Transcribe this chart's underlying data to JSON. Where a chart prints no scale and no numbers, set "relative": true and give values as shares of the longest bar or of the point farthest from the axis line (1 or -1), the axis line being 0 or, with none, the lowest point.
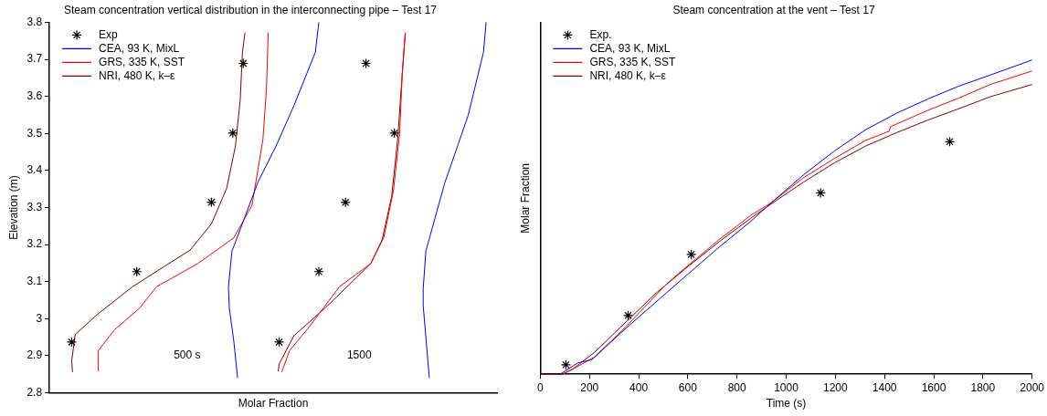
{
  "chart_data": [
    {
      "type": "line",
      "title": "Steam concentration vertical distribution in the interconnecting pipe – Test 17",
      "xlabel": "Molar Fraction",
      "ylabel": "Elevation (m)",
      "orientation": "horizontal",
      "relative": true,
      "ylim": [
        2.8,
        3.8
      ],
      "yticks": [
        2.8,
        2.9,
        3,
        3.1,
        3.2,
        3.3,
        3.4,
        3.5,
        3.6,
        3.7,
        3.8
      ],
      "tick_labels": "y",
      "grid": false,
      "legend": "top left",
      "annotations": [
        "500 s",
        "1500"
      ],
      "series": [
        {
          "name": "Exp",
          "type": "scatter",
          "marker": "cross",
          "color": "#000000",
          "x": [
            2.937,
            3.127,
            3.314,
            3.501,
            3.689
          ],
          "values": [
            0.051,
            0.2,
            0.371,
            0.42,
            0.444
          ]
        },
        {
          "name": "CEA, 93 K, MixL",
          "color": "#0000ff",
          "x": [
            2.84,
            2.942,
            3.028,
            3.086,
            3.182,
            3.263,
            3.37,
            3.466,
            3.575,
            3.719,
            3.8
          ],
          "values": [
            0.431,
            0.422,
            0.412,
            0.41,
            0.418,
            0.444,
            0.478,
            0.519,
            0.56,
            0.609,
            0.617
          ]
        },
        {
          "name": "GRS, 335 K, SST",
          "color": "#ff0000",
          "x": [
            2.858,
            2.914,
            2.97,
            3.028,
            3.086,
            3.149,
            3.218,
            3.306,
            3.484,
            3.618,
            3.772
          ],
          "values": [
            0.112,
            0.112,
            0.149,
            0.206,
            0.245,
            0.34,
            0.422,
            0.464,
            0.489,
            0.497,
            0.501
          ]
        },
        {
          "name": "NRI, 480 K, k–ε",
          "color": "#800000",
          "x": [
            2.856,
            2.886,
            2.957,
            3.01,
            3.086,
            3.132,
            3.185,
            3.256,
            3.352,
            3.466,
            3.592,
            3.719,
            3.772
          ],
          "values": [
            0.053,
            0.051,
            0.059,
            0.108,
            0.19,
            0.251,
            0.322,
            0.371,
            0.406,
            0.426,
            0.437,
            0.442,
            0.448
          ]
        },
        {
          "type": "scatter",
          "marker": "cross",
          "color": "#000000",
          "x": [
            2.937,
            3.127,
            3.314,
            3.501,
            3.689
          ],
          "values": [
            0.526,
            0.617,
            0.678,
            0.79,
            0.725
          ]
        },
        {
          "color": "#0000ff",
          "x": [
            2.84,
            3.035,
            3.081,
            3.182,
            3.365,
            3.549,
            3.719,
            3.8
          ],
          "values": [
            0.87,
            0.856,
            0.856,
            0.862,
            0.905,
            0.959,
            0.994,
            1
          ]
        },
        {
          "color": "#ff0000",
          "x": [
            2.856,
            2.914,
            2.972,
            3.086,
            3.149,
            3.22,
            3.347,
            3.499,
            3.661,
            3.772
          ],
          "values": [
            0.532,
            0.55,
            0.591,
            0.664,
            0.736,
            0.766,
            0.788,
            0.802,
            0.808,
            0.815
          ]
        },
        {
          "color": "#800000",
          "x": [
            2.858,
            2.878,
            2.954,
            3.035,
            3.149,
            3.213,
            3.332,
            3.491,
            3.661,
            3.772
          ],
          "values": [
            0.524,
            0.526,
            0.56,
            0.637,
            0.736,
            0.762,
            0.784,
            0.798,
            0.808,
            0.815
          ]
        }
      ]
    },
    {
      "type": "line",
      "title": "Steam concentration at the vent – Test 17",
      "xlabel": "Time (s)",
      "ylabel": "Molar Fraction",
      "relative": true,
      "xlim": [
        0,
        2000
      ],
      "xticks": [
        0,
        200,
        400,
        600,
        800,
        1000,
        1200,
        1400,
        1600,
        1800,
        2000
      ],
      "tick_labels": "x",
      "grid": false,
      "legend": "top left",
      "series": [
        {
          "name": "Exp.",
          "type": "scatter",
          "marker": "cross",
          "color": "#000000",
          "x": [
            104,
            357,
            614,
            1140,
            1665
          ],
          "values": [
            0.03,
            0.187,
            0.381,
            0.577,
            0.74
          ]
        },
        {
          "name": "CEA, 93 K, MixL",
          "color": "#0000ff",
          "x": [
            81,
            152,
            209,
            348,
            475,
            601,
            728,
            855,
            943,
            1070,
            1197,
            1323,
            1450,
            1577,
            1703,
            1830,
            2000
          ],
          "values": [
            0,
            0.036,
            0.046,
            0.146,
            0.233,
            0.319,
            0.405,
            0.486,
            0.548,
            0.634,
            0.711,
            0.778,
            0.831,
            0.876,
            0.917,
            0.952,
            1
          ]
        },
        {
          "name": "GRS, 335 K, SST",
          "color": "#ff0000",
          "x": [
            90,
            146,
            221,
            348,
            500,
            525,
            563,
            728,
            855,
            943,
            1070,
            1197,
            1323,
            1418,
            1425,
            1577,
            1703,
            1830,
            2000
          ],
          "values": [
            0,
            0.022,
            0.055,
            0.151,
            0.276,
            0.295,
            0.321,
            0.429,
            0.505,
            0.548,
            0.625,
            0.687,
            0.744,
            0.773,
            0.788,
            0.84,
            0.879,
            0.922,
            0.965
          ]
        },
        {
          "name": "NRI, 480 K, k–ε",
          "color": "#800000",
          "x": [
            0,
            90,
            133,
            221,
            348,
            475,
            601,
            728,
            855,
            943,
            1070,
            1197,
            1323,
            1450,
            1577,
            1703,
            1830,
            2000
          ],
          "values": [
            0,
            0,
            0.017,
            0.07,
            0.166,
            0.261,
            0.343,
            0.422,
            0.496,
            0.544,
            0.611,
            0.673,
            0.726,
            0.769,
            0.809,
            0.845,
            0.883,
            0.922
          ]
        }
      ]
    }
  ]
}
